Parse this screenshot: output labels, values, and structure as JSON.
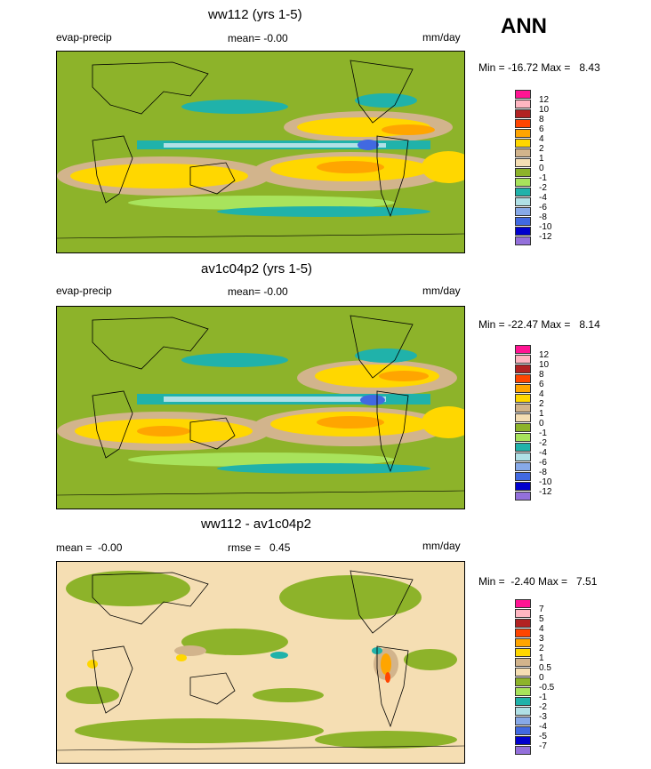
{
  "season": "ANN",
  "panels": [
    {
      "title": "ww112 (yrs 1-5)",
      "left_label": "evap-precip",
      "center_label": "mean=  -0.00",
      "right_label": "mm/day",
      "minmax": "Min = -16.72 Max =   8.43",
      "colorbar": {
        "labels": [
          "12",
          "10",
          "8",
          "6",
          "4",
          "2",
          "1",
          "0",
          "-1",
          "-2",
          "-4",
          "-6",
          "-8",
          "-10",
          "-12"
        ],
        "colors": [
          "#ff1493",
          "#ffb6c1",
          "#b22222",
          "#ff4500",
          "#ffa500",
          "#ffd700",
          "#d2b48c",
          "#f5deb3",
          "#8db32a",
          "#a8e35c",
          "#20b2aa",
          "#b0e0e6",
          "#87a9e8",
          "#4169e1",
          "#0000cd",
          "#9370db"
        ]
      }
    },
    {
      "title": "av1c04p2 (yrs 1-5)",
      "left_label": "evap-precip",
      "center_label": "mean=  -0.00",
      "right_label": "mm/day",
      "minmax": "Min = -22.47 Max =   8.14",
      "colorbar": {
        "labels": [
          "12",
          "10",
          "8",
          "6",
          "4",
          "2",
          "1",
          "0",
          "-1",
          "-2",
          "-4",
          "-6",
          "-8",
          "-10",
          "-12"
        ],
        "colors": [
          "#ff1493",
          "#ffb6c1",
          "#b22222",
          "#ff4500",
          "#ffa500",
          "#ffd700",
          "#d2b48c",
          "#f5deb3",
          "#8db32a",
          "#a8e35c",
          "#20b2aa",
          "#b0e0e6",
          "#87a9e8",
          "#4169e1",
          "#0000cd",
          "#9370db"
        ]
      }
    },
    {
      "title": "ww112 - av1c04p2",
      "left_label": "mean =  -0.00",
      "center_label": "rmse =   0.45",
      "right_label": "mm/day",
      "minmax": "Min =  -2.40 Max =   7.51",
      "colorbar": {
        "labels": [
          "7",
          "5",
          "4",
          "3",
          "2",
          "1",
          "0.5",
          "0",
          "-0.5",
          "-1",
          "-2",
          "-3",
          "-4",
          "-5",
          "-7"
        ],
        "colors": [
          "#ff1493",
          "#ffb6c1",
          "#b22222",
          "#ff4500",
          "#ffa500",
          "#ffd700",
          "#d2b48c",
          "#f5deb3",
          "#8db32a",
          "#a8e35c",
          "#20b2aa",
          "#b0e0e6",
          "#87a9e8",
          "#4169e1",
          "#0000cd",
          "#9370db"
        ]
      }
    }
  ]
}
